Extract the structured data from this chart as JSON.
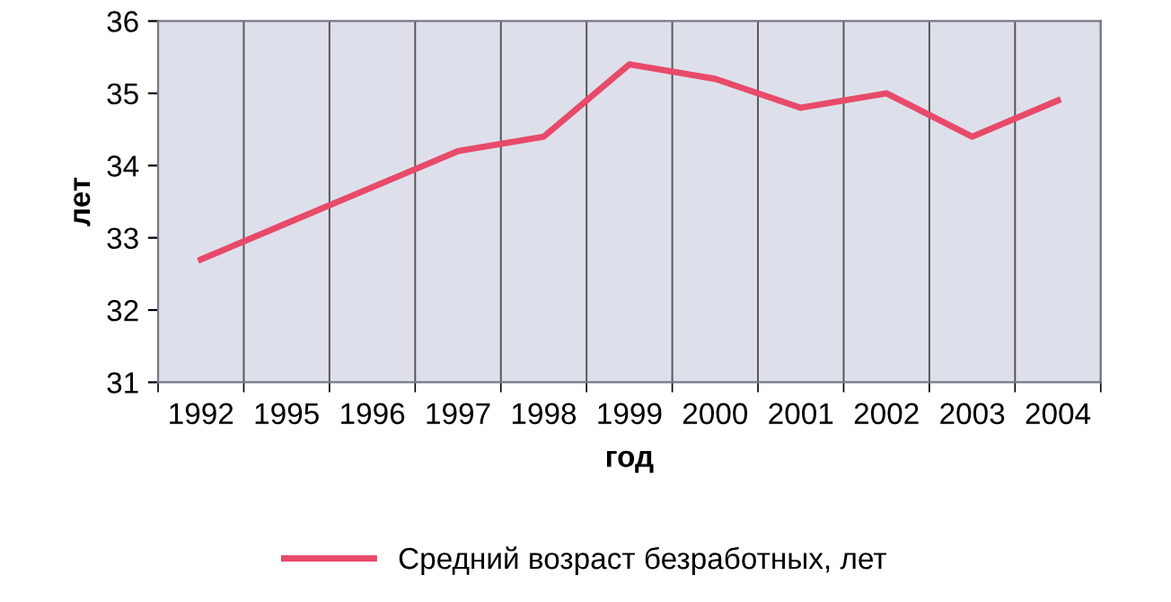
{
  "chart_data": {
    "type": "line",
    "xlabel": "год",
    "ylabel": "лет",
    "categories": [
      "1992",
      "1995",
      "1996",
      "1997",
      "1998",
      "1999",
      "2000",
      "2001",
      "2002",
      "2003",
      "2004"
    ],
    "series": [
      {
        "name": "Средний возраст безработных, лет",
        "color": "#e84a6a",
        "values": [
          32.7,
          33.2,
          33.7,
          34.2,
          34.4,
          35.4,
          35.2,
          34.8,
          35.0,
          34.4,
          34.9
        ]
      }
    ],
    "ylim": [
      31,
      36
    ],
    "yticks": [
      31,
      32,
      33,
      34,
      35,
      36
    ],
    "grid": "x",
    "legend": "bottom",
    "marker": "none",
    "line_style": "solid"
  }
}
